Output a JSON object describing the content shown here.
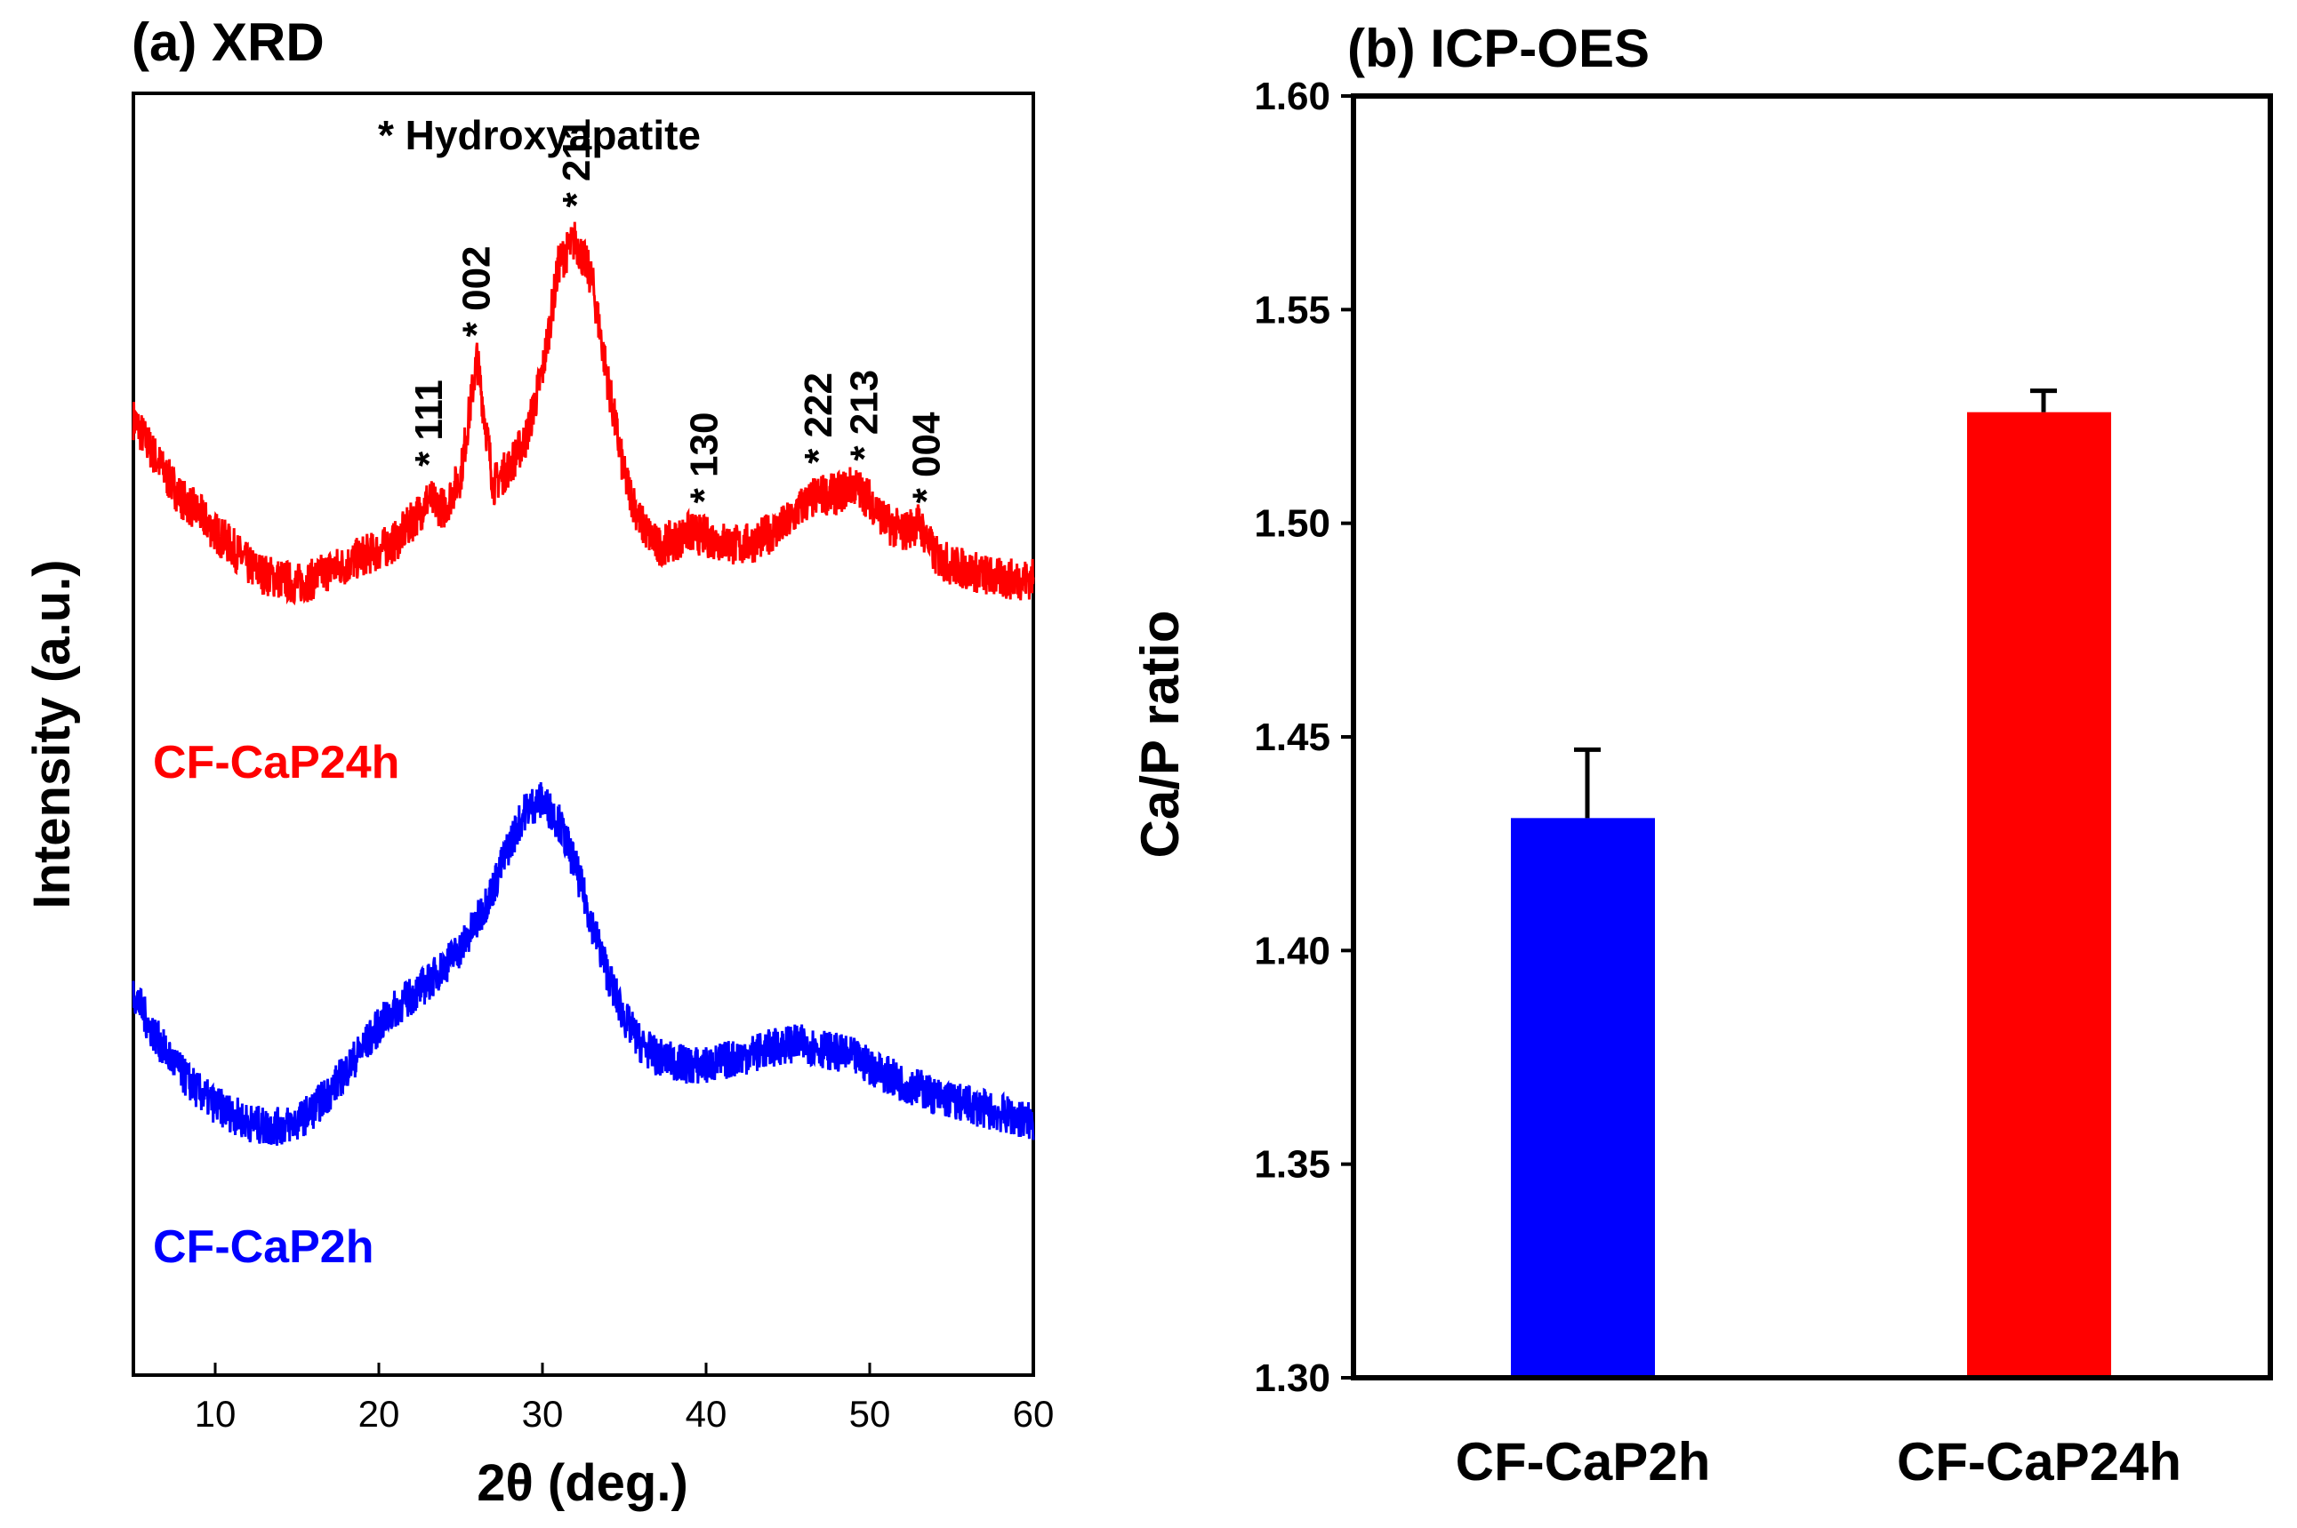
{
  "chart_data": [
    {
      "type": "line",
      "panel": "a",
      "title": "(a) XRD",
      "xlabel": "2θ (deg.)",
      "ylabel": "Intensity (a.u.)",
      "xlim": [
        5,
        60
      ],
      "xticks": [
        10,
        20,
        30,
        40,
        50,
        60
      ],
      "legend_note": "* Hydroxyapatite",
      "series": [
        {
          "name": "CF-CaP24h",
          "color": "#ff0000",
          "profile": [
            [
              5,
              0.62
            ],
            [
              6,
              0.56
            ],
            [
              7,
              0.5
            ],
            [
              8,
              0.45
            ],
            [
              9,
              0.42
            ],
            [
              10,
              0.38
            ],
            [
              11,
              0.35
            ],
            [
              12,
              0.31
            ],
            [
              13,
              0.29
            ],
            [
              14,
              0.28
            ],
            [
              15,
              0.27
            ],
            [
              16,
              0.28
            ],
            [
              17,
              0.3
            ],
            [
              18,
              0.31
            ],
            [
              19,
              0.33
            ],
            [
              20,
              0.34
            ],
            [
              21,
              0.36
            ],
            [
              22,
              0.4
            ],
            [
              23,
              0.45
            ],
            [
              24,
              0.43
            ],
            [
              25,
              0.5
            ],
            [
              26,
              0.75
            ],
            [
              27,
              0.48
            ],
            [
              28,
              0.52
            ],
            [
              29,
              0.58
            ],
            [
              30,
              0.72
            ],
            [
              31,
              0.95
            ],
            [
              32,
              1.0
            ],
            [
              33,
              0.92
            ],
            [
              34,
              0.7
            ],
            [
              35,
              0.5
            ],
            [
              36,
              0.4
            ],
            [
              37,
              0.35
            ],
            [
              38,
              0.36
            ],
            [
              39,
              0.38
            ],
            [
              40,
              0.37
            ],
            [
              41,
              0.36
            ],
            [
              42,
              0.35
            ],
            [
              43,
              0.36
            ],
            [
              44,
              0.38
            ],
            [
              45,
              0.4
            ],
            [
              46,
              0.44
            ],
            [
              47,
              0.46
            ],
            [
              48,
              0.46
            ],
            [
              49,
              0.48
            ],
            [
              50,
              0.45
            ],
            [
              51,
              0.4
            ],
            [
              52,
              0.38
            ],
            [
              53,
              0.4
            ],
            [
              54,
              0.33
            ],
            [
              55,
              0.31
            ],
            [
              56,
              0.3
            ],
            [
              57,
              0.29
            ],
            [
              58,
              0.28
            ],
            [
              59,
              0.28
            ],
            [
              60,
              0.28
            ]
          ]
        },
        {
          "name": "CF-CaP2h",
          "color": "#0000ff",
          "profile": [
            [
              5,
              0.56
            ],
            [
              6,
              0.48
            ],
            [
              7,
              0.42
            ],
            [
              8,
              0.37
            ],
            [
              9,
              0.33
            ],
            [
              10,
              0.3
            ],
            [
              11,
              0.28
            ],
            [
              12,
              0.26
            ],
            [
              13,
              0.25
            ],
            [
              14,
              0.25
            ],
            [
              15,
              0.26
            ],
            [
              16,
              0.29
            ],
            [
              17,
              0.33
            ],
            [
              18,
              0.38
            ],
            [
              19,
              0.43
            ],
            [
              20,
              0.48
            ],
            [
              21,
              0.52
            ],
            [
              22,
              0.55
            ],
            [
              23,
              0.58
            ],
            [
              24,
              0.62
            ],
            [
              25,
              0.66
            ],
            [
              26,
              0.72
            ],
            [
              27,
              0.8
            ],
            [
              28,
              0.9
            ],
            [
              29,
              0.98
            ],
            [
              30,
              1.0
            ],
            [
              31,
              0.95
            ],
            [
              32,
              0.85
            ],
            [
              33,
              0.72
            ],
            [
              34,
              0.6
            ],
            [
              35,
              0.5
            ],
            [
              36,
              0.44
            ],
            [
              37,
              0.41
            ],
            [
              38,
              0.4
            ],
            [
              39,
              0.39
            ],
            [
              40,
              0.39
            ],
            [
              41,
              0.4
            ],
            [
              42,
              0.41
            ],
            [
              43,
              0.42
            ],
            [
              44,
              0.43
            ],
            [
              45,
              0.44
            ],
            [
              46,
              0.44
            ],
            [
              47,
              0.43
            ],
            [
              48,
              0.42
            ],
            [
              49,
              0.41
            ],
            [
              50,
              0.39
            ],
            [
              51,
              0.37
            ],
            [
              52,
              0.35
            ],
            [
              53,
              0.34
            ],
            [
              54,
              0.32
            ],
            [
              55,
              0.31
            ],
            [
              56,
              0.3
            ],
            [
              57,
              0.29
            ],
            [
              58,
              0.28
            ],
            [
              59,
              0.27
            ],
            [
              60,
              0.26
            ]
          ]
        }
      ],
      "peaks": [
        {
          "label": "111",
          "x": 23.0
        },
        {
          "label": "002",
          "x": 25.9
        },
        {
          "label": "211",
          "x": 32.0
        },
        {
          "label": "130",
          "x": 39.8
        },
        {
          "label": "222",
          "x": 46.8
        },
        {
          "label": "213",
          "x": 49.6
        },
        {
          "label": "004",
          "x": 53.4
        }
      ]
    },
    {
      "type": "bar",
      "panel": "b",
      "title": "(b) ICP-OES",
      "xlabel": "",
      "ylabel": "Ca/P ratio",
      "ylim": [
        1.3,
        1.6
      ],
      "yticks": [
        "1.30",
        "1.35",
        "1.40",
        "1.45",
        "1.50",
        "1.55",
        "1.60"
      ],
      "categories": [
        "CF-CaP2h",
        "CF-CaP24h"
      ],
      "values": [
        1.431,
        1.526
      ],
      "errors": [
        0.016,
        0.005
      ],
      "colors": [
        "#0000ff",
        "#ff0000"
      ]
    }
  ]
}
